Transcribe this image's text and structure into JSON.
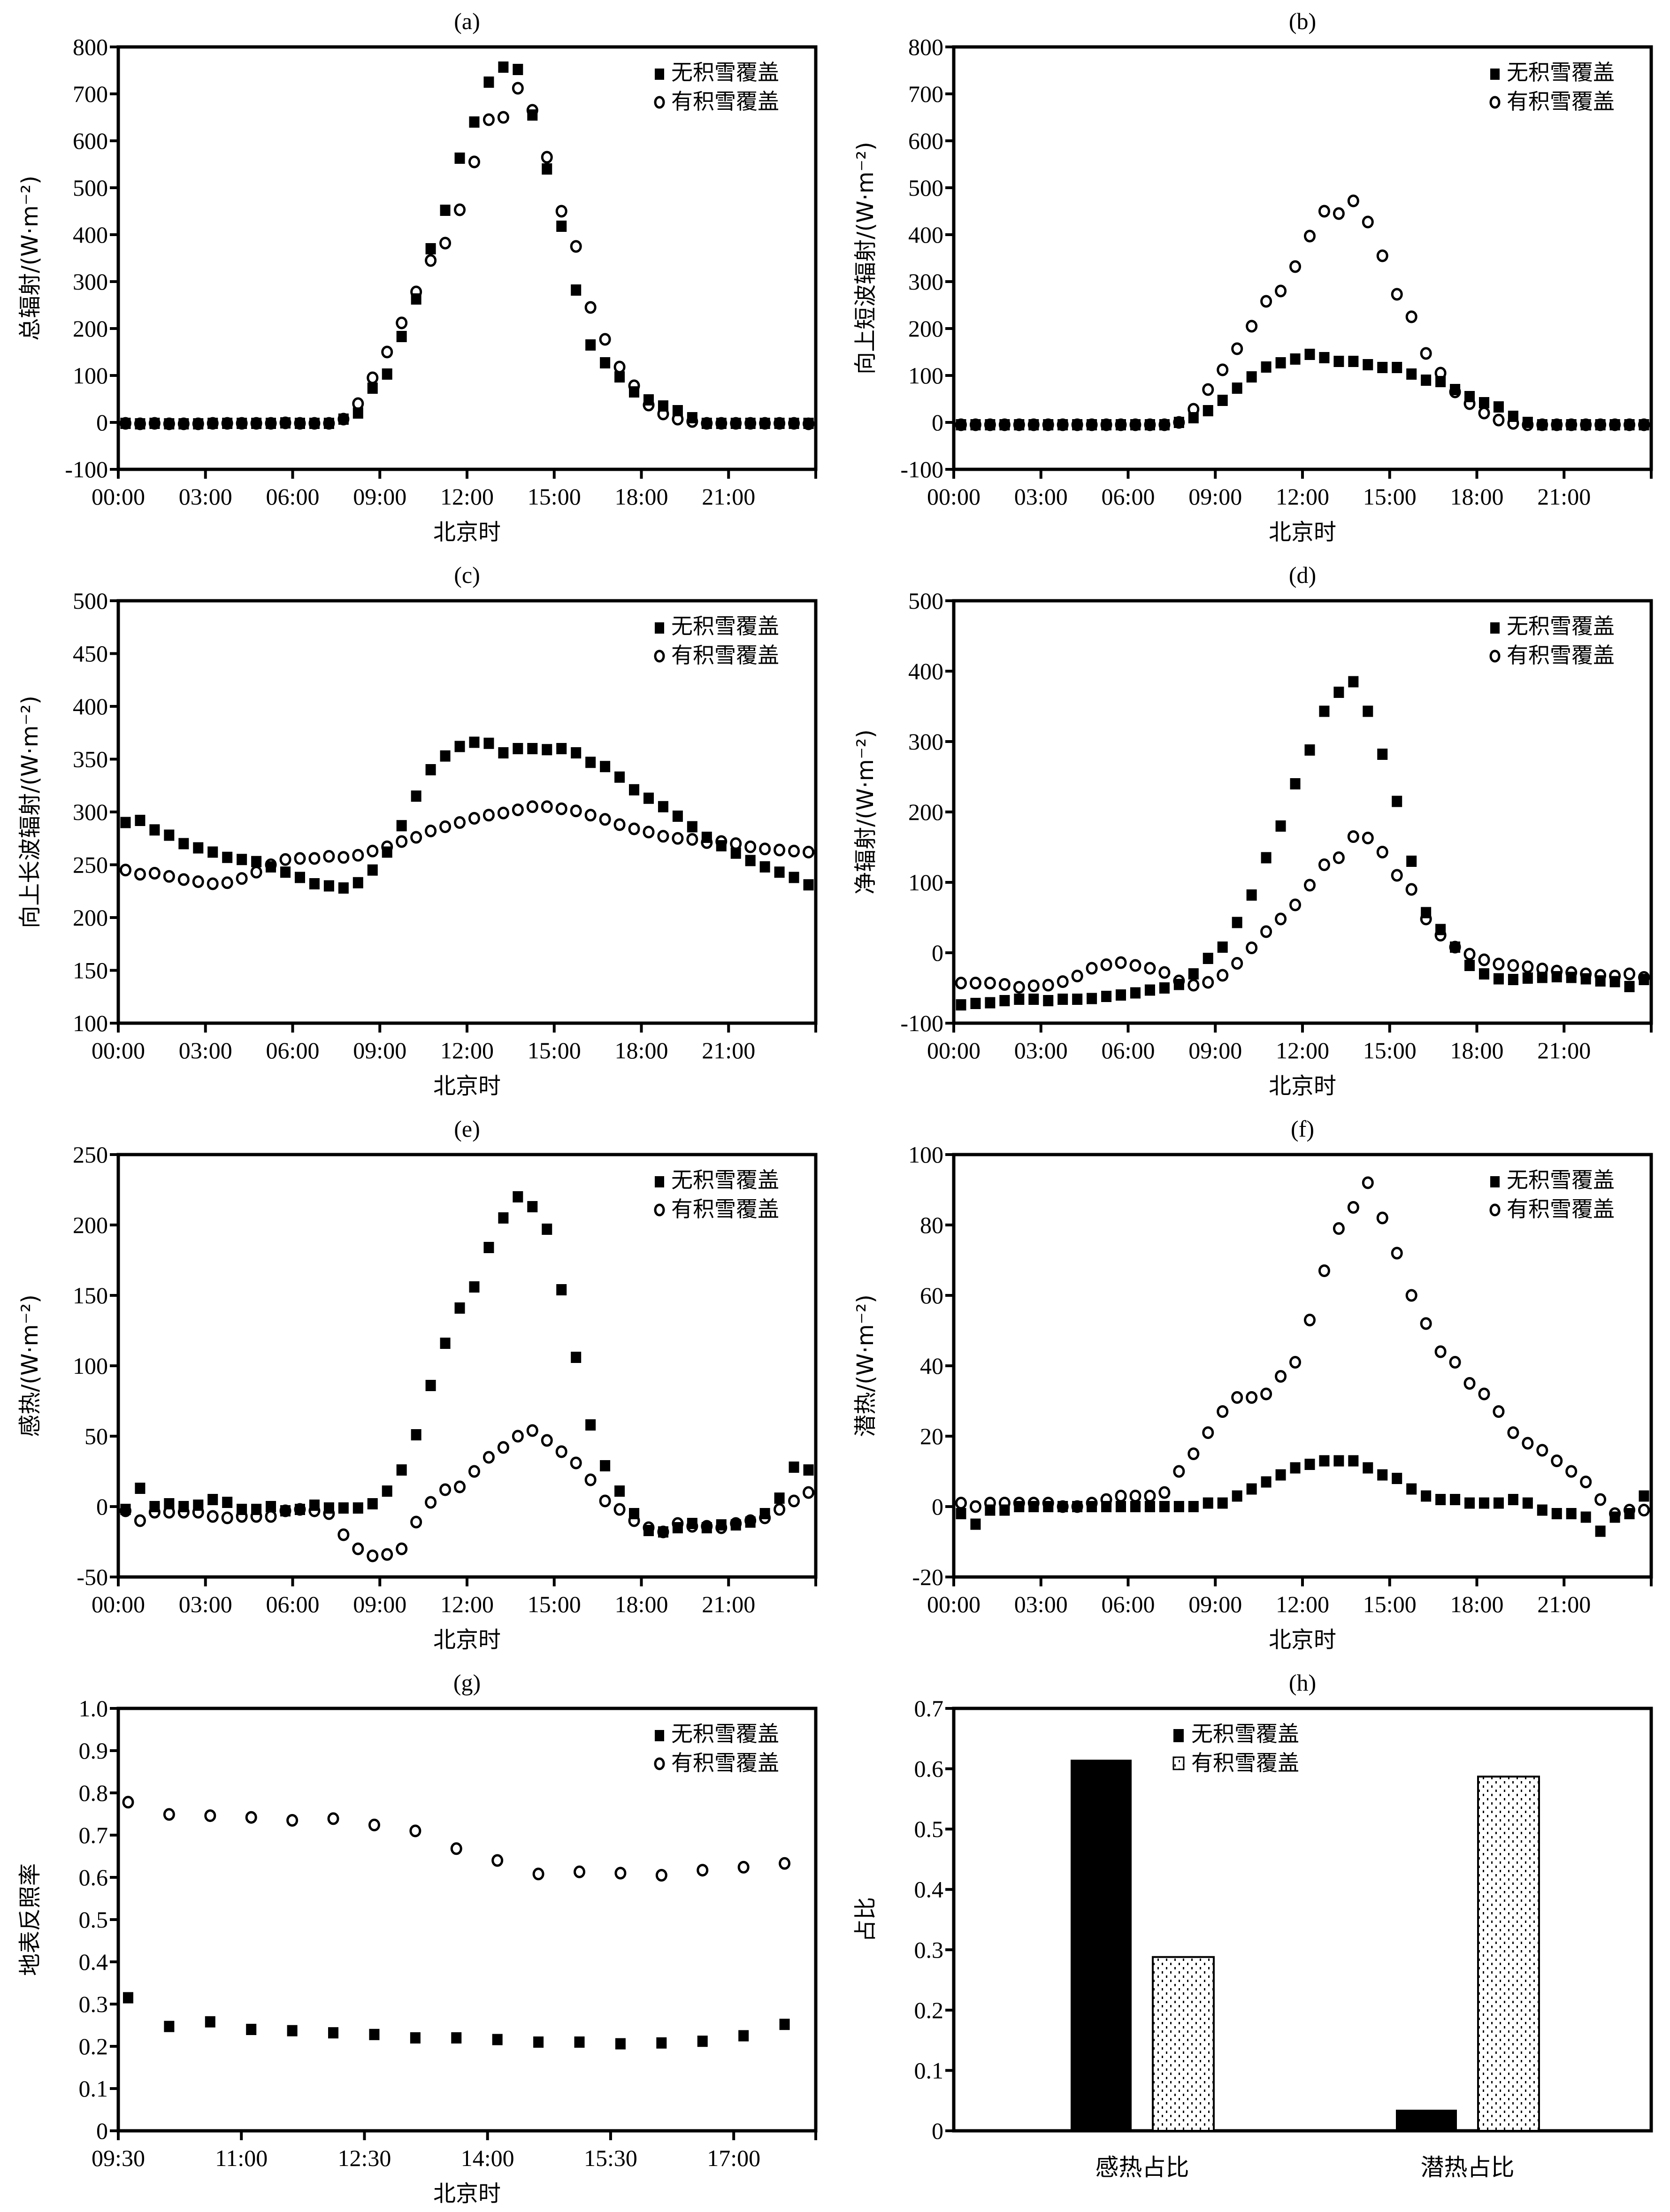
{
  "figure": {
    "legend": {
      "no_snow": "无积雪覆盖",
      "snow": "有积雪覆盖"
    },
    "colors": {
      "ink": "#000000",
      "background": "#ffffff"
    }
  },
  "chart_data": [
    {
      "id": "a",
      "type": "scatter",
      "title": "(a)",
      "xlabel": "北京时",
      "ylabel": "总辐射/(W·m⁻²)",
      "xlim_hours": [
        0,
        24
      ],
      "xticks": [
        "00:00",
        "03:00",
        "06:00",
        "09:00",
        "12:00",
        "15:00",
        "18:00",
        "21:00"
      ],
      "xtick_hours": [
        0,
        3,
        6,
        9,
        12,
        15,
        18,
        21
      ],
      "ylim": [
        -100,
        800
      ],
      "yticks": [
        -100,
        0,
        100,
        200,
        300,
        400,
        500,
        600,
        700,
        800
      ],
      "legend_position": "top-right",
      "x_start_hours": 0.25,
      "x_step_hours": 0.5,
      "series": [
        {
          "name": "无积雪覆盖",
          "marker": "square",
          "values": [
            -2,
            -3,
            -2,
            -3,
            -3,
            -3,
            -2,
            -2,
            -2,
            -2,
            -2,
            -1,
            -2,
            -2,
            -2,
            7,
            20,
            73,
            103,
            183,
            263,
            370,
            452,
            563,
            640,
            725,
            757,
            752,
            655,
            540,
            418,
            282,
            165,
            127,
            97,
            65,
            48,
            35,
            25,
            10,
            -2,
            -2,
            -2,
            -2,
            -2,
            -2,
            -2,
            -2
          ]
        },
        {
          "name": "有积雪覆盖",
          "marker": "circle",
          "values": [
            -2,
            -3,
            -2,
            -3,
            -3,
            -3,
            -2,
            -2,
            -2,
            -2,
            -2,
            -1,
            -2,
            -2,
            -2,
            7,
            40,
            95,
            150,
            212,
            278,
            345,
            382,
            453,
            555,
            645,
            650,
            712,
            665,
            565,
            450,
            375,
            245,
            177,
            118,
            78,
            37,
            18,
            7,
            2,
            -2,
            -2,
            -2,
            -2,
            -2,
            -2,
            -2,
            -3
          ]
        }
      ]
    },
    {
      "id": "b",
      "type": "scatter",
      "title": "(b)",
      "xlabel": "北京时",
      "ylabel": "向上短波辐射/(W·m⁻²)",
      "xlim_hours": [
        0,
        24
      ],
      "xticks": [
        "00:00",
        "03:00",
        "06:00",
        "09:00",
        "12:00",
        "15:00",
        "18:00",
        "21:00"
      ],
      "xtick_hours": [
        0,
        3,
        6,
        9,
        12,
        15,
        18,
        21
      ],
      "ylim": [
        -100,
        800
      ],
      "yticks": [
        -100,
        0,
        100,
        200,
        300,
        400,
        500,
        600,
        700,
        800
      ],
      "legend_position": "top-right",
      "x_start_hours": 0.25,
      "x_step_hours": 0.5,
      "series": [
        {
          "name": "无积雪覆盖",
          "marker": "square",
          "values": [
            -5,
            -5,
            -5,
            -5,
            -5,
            -5,
            -5,
            -5,
            -5,
            -5,
            -5,
            -5,
            -5,
            -5,
            -5,
            0,
            10,
            25,
            47,
            73,
            97,
            118,
            127,
            135,
            145,
            138,
            130,
            130,
            123,
            117,
            117,
            103,
            90,
            87,
            70,
            55,
            42,
            33,
            13,
            0,
            -5,
            -5,
            -5,
            -5,
            -5,
            -5,
            -5,
            -5
          ]
        },
        {
          "name": "有积雪覆盖",
          "marker": "circle",
          "values": [
            -5,
            -5,
            -5,
            -5,
            -5,
            -5,
            -5,
            -5,
            -5,
            -5,
            -5,
            -5,
            -5,
            -5,
            -5,
            0,
            28,
            70,
            112,
            157,
            205,
            258,
            280,
            332,
            397,
            450,
            445,
            472,
            427,
            355,
            273,
            225,
            147,
            105,
            65,
            40,
            20,
            5,
            -2,
            -5,
            -5,
            -5,
            -5,
            -5,
            -5,
            -5,
            -5,
            -5
          ]
        }
      ]
    },
    {
      "id": "c",
      "type": "scatter",
      "title": "(c)",
      "xlabel": "北京时",
      "ylabel": "向上长波辐射/(W·m⁻²)",
      "xlim_hours": [
        0,
        24
      ],
      "xticks": [
        "00:00",
        "03:00",
        "06:00",
        "09:00",
        "12:00",
        "15:00",
        "18:00",
        "21:00"
      ],
      "xtick_hours": [
        0,
        3,
        6,
        9,
        12,
        15,
        18,
        21
      ],
      "ylim": [
        100,
        500
      ],
      "yticks": [
        100,
        150,
        200,
        250,
        300,
        350,
        400,
        450,
        500
      ],
      "legend_position": "top-right",
      "x_start_hours": 0.25,
      "x_step_hours": 0.5,
      "series": [
        {
          "name": "无积雪覆盖",
          "marker": "square",
          "values": [
            290,
            292,
            283,
            278,
            270,
            266,
            262,
            257,
            255,
            253,
            248,
            243,
            238,
            232,
            230,
            228,
            233,
            245,
            262,
            287,
            315,
            340,
            353,
            362,
            366,
            365,
            356,
            360,
            360,
            359,
            360,
            356,
            347,
            343,
            333,
            321,
            313,
            305,
            296,
            286,
            276,
            268,
            261,
            254,
            248,
            243,
            238,
            231
          ]
        },
        {
          "name": "有积雪覆盖",
          "marker": "circle",
          "values": [
            245,
            241,
            242,
            239,
            236,
            234,
            232,
            233,
            237,
            243,
            250,
            255,
            256,
            256,
            258,
            257,
            259,
            263,
            267,
            272,
            276,
            282,
            286,
            290,
            294,
            297,
            299,
            302,
            305,
            305,
            303,
            301,
            297,
            293,
            288,
            284,
            281,
            277,
            275,
            274,
            271,
            272,
            270,
            267,
            265,
            264,
            263,
            262
          ]
        }
      ]
    },
    {
      "id": "d",
      "type": "scatter",
      "title": "(d)",
      "xlabel": "北京时",
      "ylabel": "净辐射/(W·m⁻²)",
      "xlim_hours": [
        0,
        24
      ],
      "xticks": [
        "00:00",
        "03:00",
        "06:00",
        "09:00",
        "12:00",
        "15:00",
        "18:00",
        "21:00"
      ],
      "xtick_hours": [
        0,
        3,
        6,
        9,
        12,
        15,
        18,
        21
      ],
      "ylim": [
        -100,
        500
      ],
      "yticks": [
        -100,
        0,
        100,
        200,
        300,
        400,
        500
      ],
      "legend_position": "top-right",
      "x_start_hours": 0.25,
      "x_step_hours": 0.5,
      "series": [
        {
          "name": "无积雪覆盖",
          "marker": "square",
          "values": [
            -74,
            -72,
            -71,
            -68,
            -66,
            -66,
            -68,
            -66,
            -66,
            -65,
            -62,
            -60,
            -57,
            -53,
            -50,
            -45,
            -30,
            -8,
            8,
            43,
            82,
            135,
            180,
            240,
            288,
            343,
            370,
            385,
            343,
            282,
            215,
            130,
            57,
            33,
            8,
            -18,
            -30,
            -37,
            -38,
            -36,
            -35,
            -34,
            -35,
            -37,
            -40,
            -41,
            -48,
            -38
          ]
        },
        {
          "name": "有积雪覆盖",
          "marker": "circle",
          "values": [
            -43,
            -43,
            -43,
            -45,
            -49,
            -47,
            -46,
            -41,
            -33,
            -22,
            -17,
            -14,
            -18,
            -22,
            -28,
            -40,
            -46,
            -42,
            -32,
            -15,
            7,
            30,
            48,
            68,
            96,
            125,
            135,
            165,
            163,
            143,
            110,
            90,
            48,
            25,
            8,
            -2,
            -10,
            -16,
            -18,
            -20,
            -23,
            -26,
            -28,
            -30,
            -32,
            -33,
            -30,
            -35
          ]
        }
      ]
    },
    {
      "id": "e",
      "type": "scatter",
      "title": "(e)",
      "xlabel": "北京时",
      "ylabel": "感热/(W·m⁻²)",
      "xlim_hours": [
        0,
        24
      ],
      "xticks": [
        "00:00",
        "03:00",
        "06:00",
        "09:00",
        "12:00",
        "15:00",
        "18:00",
        "21:00"
      ],
      "xtick_hours": [
        0,
        3,
        6,
        9,
        12,
        15,
        18,
        21
      ],
      "ylim": [
        -50,
        250
      ],
      "yticks": [
        -50,
        0,
        50,
        100,
        150,
        200,
        250
      ],
      "legend_position": "top-right",
      "x_start_hours": 0.25,
      "x_step_hours": 0.5,
      "series": [
        {
          "name": "无积雪覆盖",
          "marker": "square",
          "values": [
            -2,
            13,
            0,
            2,
            0,
            1,
            5,
            3,
            -2,
            -2,
            0,
            -3,
            -2,
            1,
            -1,
            -1,
            -1,
            2,
            11,
            26,
            51,
            86,
            116,
            141,
            156,
            184,
            205,
            220,
            213,
            197,
            154,
            106,
            58,
            29,
            11,
            -5,
            -17,
            -18,
            -15,
            -12,
            -15,
            -13,
            -13,
            -11,
            -5,
            6,
            28,
            26
          ]
        },
        {
          "name": "有积雪覆盖",
          "marker": "circle",
          "values": [
            -3,
            -10,
            -4,
            -4,
            -4,
            -4,
            -7,
            -8,
            -7,
            -7,
            -7,
            -3,
            -2,
            -3,
            -5,
            -20,
            -30,
            -35,
            -34,
            -30,
            -11,
            3,
            12,
            14,
            25,
            35,
            42,
            50,
            54,
            47,
            39,
            31,
            19,
            4,
            -2,
            -10,
            -15,
            -18,
            -12,
            -14,
            -14,
            -15,
            -12,
            -10,
            -8,
            -2,
            4,
            10
          ]
        }
      ]
    },
    {
      "id": "f",
      "type": "scatter",
      "title": "(f)",
      "xlabel": "北京时",
      "ylabel": "潜热/(W·m⁻²)",
      "xlim_hours": [
        0,
        24
      ],
      "xticks": [
        "00:00",
        "03:00",
        "06:00",
        "09:00",
        "12:00",
        "15:00",
        "18:00",
        "21:00"
      ],
      "xtick_hours": [
        0,
        3,
        6,
        9,
        12,
        15,
        18,
        21
      ],
      "ylim": [
        -20,
        100
      ],
      "yticks": [
        -20,
        0,
        20,
        40,
        60,
        80,
        100
      ],
      "legend_position": "top-right",
      "x_start_hours": 0.25,
      "x_step_hours": 0.5,
      "series": [
        {
          "name": "无积雪覆盖",
          "marker": "square",
          "values": [
            -2,
            -5,
            -1,
            -1,
            0,
            0,
            0,
            0,
            0,
            0,
            0,
            0,
            0,
            0,
            0,
            0,
            0,
            1,
            1,
            3,
            5,
            7,
            9,
            11,
            12,
            13,
            13,
            13,
            11,
            9,
            8,
            5,
            3,
            2,
            2,
            1,
            1,
            1,
            2,
            1,
            -1,
            -2,
            -2,
            -3,
            -7,
            -3,
            -2,
            3
          ]
        },
        {
          "name": "有积雪覆盖",
          "marker": "circle",
          "values": [
            1,
            0,
            1,
            1,
            1,
            1,
            1,
            0,
            0,
            1,
            2,
            3,
            3,
            3,
            4,
            10,
            15,
            21,
            27,
            31,
            31,
            32,
            37,
            41,
            53,
            67,
            79,
            85,
            92,
            82,
            72,
            60,
            52,
            44,
            41,
            35,
            32,
            27,
            21,
            18,
            16,
            13,
            10,
            7,
            2,
            -2,
            -1,
            -1
          ]
        }
      ]
    },
    {
      "id": "g",
      "type": "scatter",
      "title": "(g)",
      "xlabel": "北京时",
      "ylabel": "地表反照率",
      "xlim_hours": [
        9.5,
        18.0
      ],
      "xticks": [
        "09:30",
        "11:00",
        "12:30",
        "14:00",
        "15:30",
        "17:00"
      ],
      "xtick_hours": [
        9.5,
        11,
        12.5,
        14,
        15.5,
        17
      ],
      "ylim": [
        0,
        1.0
      ],
      "yticks": [
        "0",
        "0.1",
        "0.2",
        "0.3",
        "0.4",
        "0.5",
        "0.6",
        "0.7",
        "0.8",
        "0.9",
        "1.0"
      ],
      "legend_position": "top-right",
      "x_start_hours": 9.62,
      "x_step_hours": 0.5,
      "series": [
        {
          "name": "无积雪覆盖",
          "marker": "square",
          "values": [
            0.315,
            0.247,
            0.258,
            0.24,
            0.237,
            0.232,
            0.228,
            0.22,
            0.22,
            0.216,
            0.21,
            0.21,
            0.206,
            0.208,
            0.212,
            0.225,
            0.252
          ]
        },
        {
          "name": "有积雪覆盖",
          "marker": "circle",
          "values": [
            0.778,
            0.749,
            0.746,
            0.742,
            0.735,
            0.739,
            0.724,
            0.71,
            0.668,
            0.64,
            0.608,
            0.613,
            0.61,
            0.605,
            0.617,
            0.624,
            0.633
          ]
        }
      ]
    },
    {
      "id": "h",
      "type": "bar",
      "title": "(h)",
      "xlabel": "",
      "ylabel": "占比",
      "categories": [
        "感热占比",
        "潜热占比"
      ],
      "ylim": [
        0,
        0.7
      ],
      "yticks": [
        "0",
        "0.1",
        "0.2",
        "0.3",
        "0.4",
        "0.5",
        "0.6",
        "0.7"
      ],
      "legend_position": "top-center",
      "series": [
        {
          "name": "无积雪覆盖",
          "fill": "solid-black",
          "values": [
            0.615,
            0.035
          ]
        },
        {
          "name": "有积雪覆盖",
          "fill": "dotted",
          "values": [
            0.288,
            0.587
          ]
        }
      ]
    }
  ]
}
